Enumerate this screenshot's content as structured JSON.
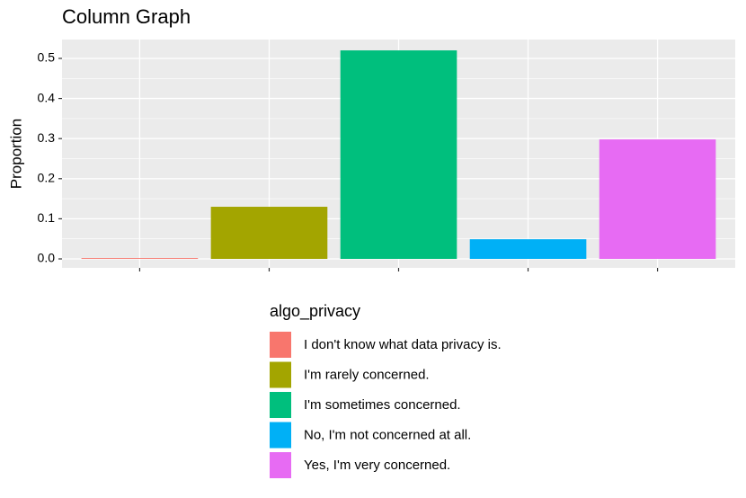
{
  "chart_data": {
    "type": "bar",
    "title": "Column Graph",
    "y_label": "Proportion",
    "categories": [
      null,
      null,
      null,
      null,
      null
    ],
    "values": [
      0.002,
      0.13,
      0.52,
      0.049,
      0.298
    ],
    "colors": [
      "#f8766d",
      "#a3a500",
      "#00bf7d",
      "#00b0f6",
      "#e76bf3"
    ],
    "ylim": [
      -0.0224,
      0.547
    ],
    "yticks": [
      {
        "value": 0,
        "label": "0.0"
      },
      0.1,
      0.2,
      0.3,
      0.4,
      0.5
    ],
    "grid": true,
    "legend": {
      "title": "algo_privacy",
      "position": "bottom",
      "labels": [
        "I don't know what data privacy is.",
        "I'm rarely concerned.",
        "I'm sometimes concerned.",
        "No, I'm not concerned at all.",
        "Yes, I'm very concerned."
      ]
    }
  }
}
